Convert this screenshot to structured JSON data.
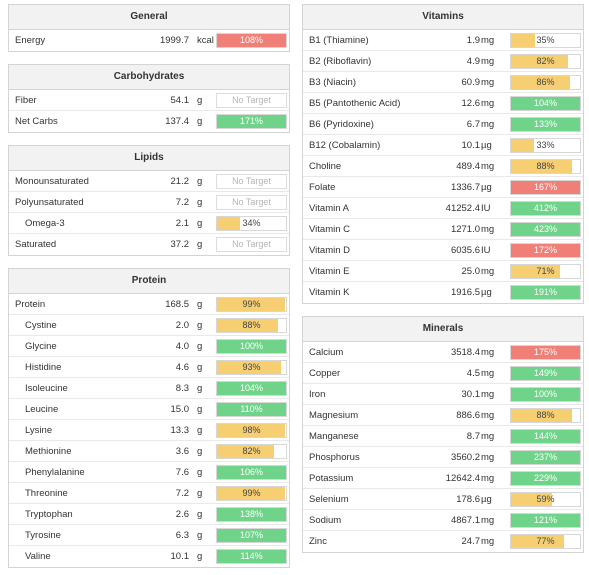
{
  "colors": {
    "red": "#ef7f77",
    "green": "#6fd38a",
    "yellow": "#f6cf73"
  },
  "panels": [
    {
      "id": "general",
      "title": "General",
      "rows": [
        {
          "name": "Energy",
          "amount": "1999.7",
          "unit": "kcal",
          "pct": "108%",
          "fill": 1.0,
          "color": "red"
        }
      ]
    },
    {
      "id": "carbohydrates",
      "title": "Carbohydrates",
      "rows": [
        {
          "name": "Fiber",
          "amount": "54.1",
          "unit": "g",
          "pct": "No Target",
          "fill": 0,
          "color": "none"
        },
        {
          "name": "Net Carbs",
          "amount": "137.4",
          "unit": "g",
          "pct": "171%",
          "fill": 1.0,
          "color": "green"
        }
      ]
    },
    {
      "id": "lipids",
      "title": "Lipids",
      "rows": [
        {
          "name": "Monounsaturated",
          "amount": "21.2",
          "unit": "g",
          "pct": "No Target",
          "fill": 0,
          "color": "none"
        },
        {
          "name": "Polyunsaturated",
          "amount": "7.2",
          "unit": "g",
          "pct": "No Target",
          "fill": 0,
          "color": "none"
        },
        {
          "name": "Omega-3",
          "amount": "2.1",
          "unit": "g",
          "pct": "34%",
          "fill": 0.34,
          "color": "yellow",
          "indent": true
        },
        {
          "name": "Saturated",
          "amount": "37.2",
          "unit": "g",
          "pct": "No Target",
          "fill": 0,
          "color": "none"
        }
      ]
    },
    {
      "id": "protein",
      "title": "Protein",
      "rows": [
        {
          "name": "Protein",
          "amount": "168.5",
          "unit": "g",
          "pct": "99%",
          "fill": 0.99,
          "color": "yellow"
        },
        {
          "name": "Cystine",
          "amount": "2.0",
          "unit": "g",
          "pct": "88%",
          "fill": 0.88,
          "color": "yellow",
          "indent": true
        },
        {
          "name": "Glycine",
          "amount": "4.0",
          "unit": "g",
          "pct": "100%",
          "fill": 1.0,
          "color": "green",
          "indent": true
        },
        {
          "name": "Histidine",
          "amount": "4.6",
          "unit": "g",
          "pct": "93%",
          "fill": 0.93,
          "color": "yellow",
          "indent": true
        },
        {
          "name": "Isoleucine",
          "amount": "8.3",
          "unit": "g",
          "pct": "104%",
          "fill": 1.0,
          "color": "green",
          "indent": true
        },
        {
          "name": "Leucine",
          "amount": "15.0",
          "unit": "g",
          "pct": "110%",
          "fill": 1.0,
          "color": "green",
          "indent": true
        },
        {
          "name": "Lysine",
          "amount": "13.3",
          "unit": "g",
          "pct": "98%",
          "fill": 0.98,
          "color": "yellow",
          "indent": true
        },
        {
          "name": "Methionine",
          "amount": "3.6",
          "unit": "g",
          "pct": "82%",
          "fill": 0.82,
          "color": "yellow",
          "indent": true
        },
        {
          "name": "Phenylalanine",
          "amount": "7.6",
          "unit": "g",
          "pct": "106%",
          "fill": 1.0,
          "color": "green",
          "indent": true
        },
        {
          "name": "Threonine",
          "amount": "7.2",
          "unit": "g",
          "pct": "99%",
          "fill": 0.99,
          "color": "yellow",
          "indent": true
        },
        {
          "name": "Tryptophan",
          "amount": "2.6",
          "unit": "g",
          "pct": "138%",
          "fill": 1.0,
          "color": "green",
          "indent": true
        },
        {
          "name": "Tyrosine",
          "amount": "6.3",
          "unit": "g",
          "pct": "107%",
          "fill": 1.0,
          "color": "green",
          "indent": true
        },
        {
          "name": "Valine",
          "amount": "10.1",
          "unit": "g",
          "pct": "114%",
          "fill": 1.0,
          "color": "green",
          "indent": true
        }
      ]
    },
    {
      "id": "vitamins",
      "title": "Vitamins",
      "rows": [
        {
          "name": "B1 (Thiamine)",
          "amount": "1.9",
          "unit": "mg",
          "pct": "35%",
          "fill": 0.35,
          "color": "yellow"
        },
        {
          "name": "B2 (Riboflavin)",
          "amount": "4.9",
          "unit": "mg",
          "pct": "82%",
          "fill": 0.82,
          "color": "yellow"
        },
        {
          "name": "B3 (Niacin)",
          "amount": "60.9",
          "unit": "mg",
          "pct": "86%",
          "fill": 0.86,
          "color": "yellow"
        },
        {
          "name": "B5 (Pantothenic Acid)",
          "amount": "12.6",
          "unit": "mg",
          "pct": "104%",
          "fill": 1.0,
          "color": "green"
        },
        {
          "name": "B6 (Pyridoxine)",
          "amount": "6.7",
          "unit": "mg",
          "pct": "133%",
          "fill": 1.0,
          "color": "green"
        },
        {
          "name": "B12 (Cobalamin)",
          "amount": "10.1",
          "unit": "µg",
          "pct": "33%",
          "fill": 0.33,
          "color": "yellow"
        },
        {
          "name": "Choline",
          "amount": "489.4",
          "unit": "mg",
          "pct": "88%",
          "fill": 0.88,
          "color": "yellow"
        },
        {
          "name": "Folate",
          "amount": "1336.7",
          "unit": "µg",
          "pct": "167%",
          "fill": 1.0,
          "color": "red"
        },
        {
          "name": "Vitamin A",
          "amount": "41252.4",
          "unit": "IU",
          "pct": "412%",
          "fill": 1.0,
          "color": "green"
        },
        {
          "name": "Vitamin C",
          "amount": "1271.0",
          "unit": "mg",
          "pct": "423%",
          "fill": 1.0,
          "color": "green"
        },
        {
          "name": "Vitamin D",
          "amount": "6035.6",
          "unit": "IU",
          "pct": "172%",
          "fill": 1.0,
          "color": "red"
        },
        {
          "name": "Vitamin E",
          "amount": "25.0",
          "unit": "mg",
          "pct": "71%",
          "fill": 0.71,
          "color": "yellow"
        },
        {
          "name": "Vitamin K",
          "amount": "1916.5",
          "unit": "µg",
          "pct": "191%",
          "fill": 1.0,
          "color": "green"
        }
      ]
    },
    {
      "id": "minerals",
      "title": "Minerals",
      "rows": [
        {
          "name": "Calcium",
          "amount": "3518.4",
          "unit": "mg",
          "pct": "175%",
          "fill": 1.0,
          "color": "red"
        },
        {
          "name": "Copper",
          "amount": "4.5",
          "unit": "mg",
          "pct": "149%",
          "fill": 1.0,
          "color": "green"
        },
        {
          "name": "Iron",
          "amount": "30.1",
          "unit": "mg",
          "pct": "100%",
          "fill": 1.0,
          "color": "green"
        },
        {
          "name": "Magnesium",
          "amount": "886.6",
          "unit": "mg",
          "pct": "88%",
          "fill": 0.88,
          "color": "yellow"
        },
        {
          "name": "Manganese",
          "amount": "8.7",
          "unit": "mg",
          "pct": "144%",
          "fill": 1.0,
          "color": "green"
        },
        {
          "name": "Phosphorus",
          "amount": "3560.2",
          "unit": "mg",
          "pct": "237%",
          "fill": 1.0,
          "color": "green"
        },
        {
          "name": "Potassium",
          "amount": "12642.4",
          "unit": "mg",
          "pct": "229%",
          "fill": 1.0,
          "color": "green"
        },
        {
          "name": "Selenium",
          "amount": "178.6",
          "unit": "µg",
          "pct": "59%",
          "fill": 0.59,
          "color": "yellow"
        },
        {
          "name": "Sodium",
          "amount": "4867.1",
          "unit": "mg",
          "pct": "121%",
          "fill": 1.0,
          "color": "green"
        },
        {
          "name": "Zinc",
          "amount": "24.7",
          "unit": "mg",
          "pct": "77%",
          "fill": 0.77,
          "color": "yellow"
        }
      ]
    }
  ]
}
